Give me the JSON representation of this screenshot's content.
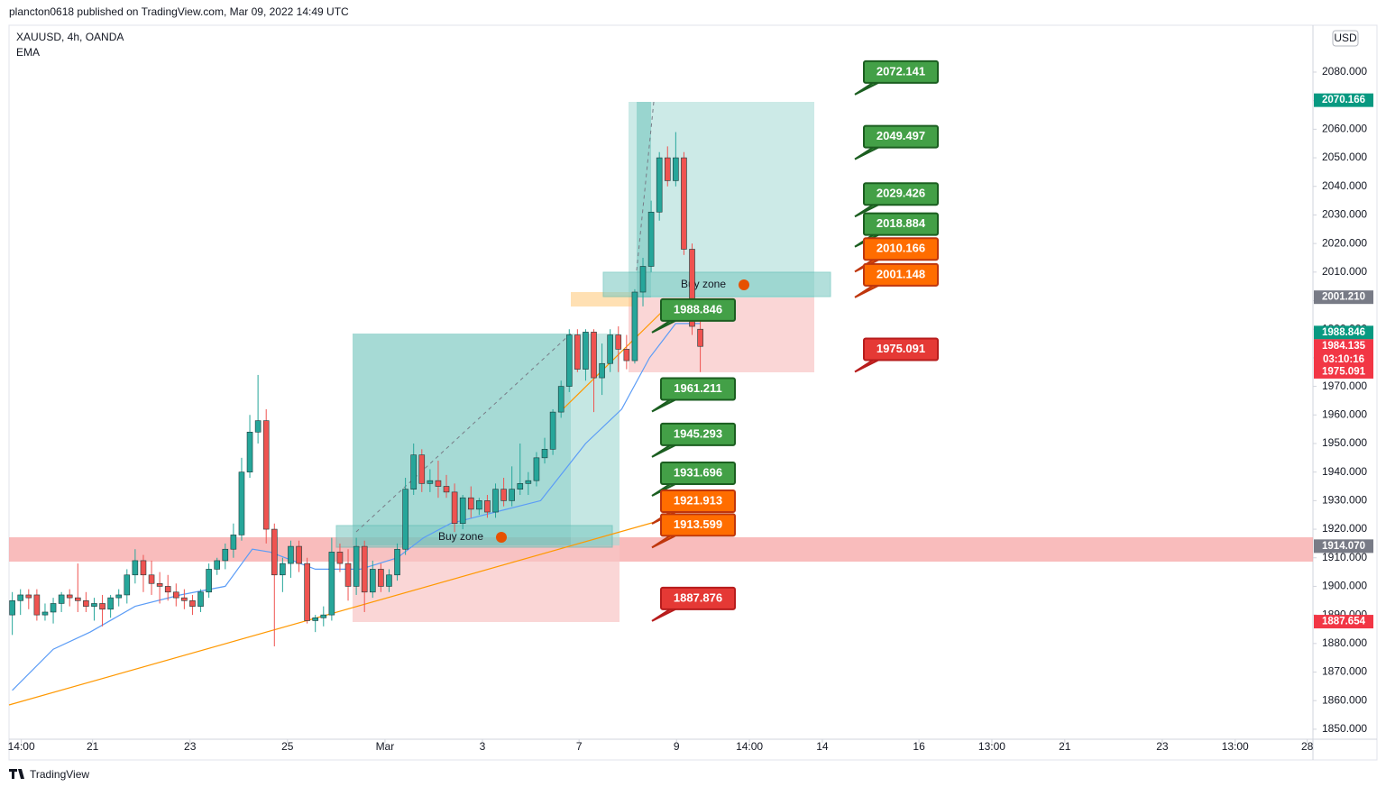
{
  "header": {
    "publisher": "plancton0618 published on TradingView.com, Mar 09, 2022 14:49 UTC",
    "footer": "TradingView"
  },
  "chart_data": {
    "type": "candlestick",
    "title": "XAUUSD, 4h, OANDA",
    "indicator": "EMA",
    "currency": "USD",
    "colors": {
      "up": "#26a69a",
      "down": "#ef5350",
      "ema": "#5b9cf6"
    },
    "grid": false,
    "ylim": [
      1846.5,
      2096.4
    ],
    "yticks": [
      {
        "value": 1850,
        "label": "1850.000"
      },
      {
        "value": 1860,
        "label": "1860.000"
      },
      {
        "value": 1870,
        "label": "1870.000"
      },
      {
        "value": 1880,
        "label": "1880.000"
      },
      {
        "value": 1890,
        "label": "1890.000"
      },
      {
        "value": 1900,
        "label": "1900.000"
      },
      {
        "value": 1910,
        "label": "1910.000"
      },
      {
        "value": 1920,
        "label": "1920.000"
      },
      {
        "value": 1930,
        "label": "1930.000"
      },
      {
        "value": 1940,
        "label": "1940.000"
      },
      {
        "value": 1950,
        "label": "1950.000"
      },
      {
        "value": 1960,
        "label": "1960.000"
      },
      {
        "value": 1970,
        "label": "1970.000"
      },
      {
        "value": 1980,
        "label": "1980.000"
      },
      {
        "value": 1990,
        "label": "1990.000"
      },
      {
        "value": 2000,
        "label": "2000.000"
      },
      {
        "value": 2010,
        "label": "2010.000"
      },
      {
        "value": 2020,
        "label": "2020.000"
      },
      {
        "value": 2030,
        "label": "2030.000"
      },
      {
        "value": 2040,
        "label": "2040.000"
      },
      {
        "value": 2050,
        "label": "2050.000"
      },
      {
        "value": 2060,
        "label": "2060.000"
      },
      {
        "value": 2070,
        "label": "2070.000"
      },
      {
        "value": 2080,
        "label": "2080.000"
      }
    ],
    "xlim": [
      -0.4,
      158.8
    ],
    "xticks": [
      {
        "value": 1.1,
        "label": "14:00"
      },
      {
        "value": 9.8,
        "label": "21"
      },
      {
        "value": 21.7,
        "label": "23"
      },
      {
        "value": 33.6,
        "label": "25"
      },
      {
        "value": 45.5,
        "label": "Mar"
      },
      {
        "value": 57.4,
        "label": "3"
      },
      {
        "value": 69.2,
        "label": "7"
      },
      {
        "value": 81.1,
        "label": "9"
      },
      {
        "value": 90.0,
        "label": "14:00"
      },
      {
        "value": 98.9,
        "label": "14"
      },
      {
        "value": 110.7,
        "label": "16"
      },
      {
        "value": 119.6,
        "label": "13:00"
      },
      {
        "value": 128.5,
        "label": "21"
      },
      {
        "value": 140.4,
        "label": "23"
      },
      {
        "value": 149.3,
        "label": "13:00"
      },
      {
        "value": 158.1,
        "label": "28"
      }
    ],
    "candles": [
      [
        1890,
        1898,
        1883,
        1895
      ],
      [
        1895,
        1899,
        1890,
        1897
      ],
      [
        1897,
        1899,
        1892,
        1896
      ],
      [
        1897,
        1899,
        1888,
        1890
      ],
      [
        1890,
        1894,
        1888,
        1891
      ],
      [
        1891,
        1896,
        1887,
        1894
      ],
      [
        1894,
        1898,
        1891,
        1897
      ],
      [
        1897,
        1899,
        1893,
        1896
      ],
      [
        1896,
        1908,
        1891,
        1895
      ],
      [
        1895,
        1898,
        1891,
        1893
      ],
      [
        1893,
        1896,
        1888,
        1894
      ],
      [
        1894,
        1897,
        1886,
        1892
      ],
      [
        1892,
        1897,
        1889,
        1896
      ],
      [
        1896,
        1899,
        1893,
        1897
      ],
      [
        1897,
        1906,
        1894,
        1904
      ],
      [
        1904,
        1913,
        1901,
        1909
      ],
      [
        1909,
        1911,
        1898,
        1904
      ],
      [
        1904,
        1909,
        1897,
        1901
      ],
      [
        1901,
        1905,
        1894,
        1900
      ],
      [
        1900,
        1904,
        1895,
        1898
      ],
      [
        1898,
        1901,
        1893,
        1896
      ],
      [
        1896,
        1899,
        1892,
        1895
      ],
      [
        1895,
        1897,
        1890,
        1893
      ],
      [
        1893,
        1899,
        1891,
        1898
      ],
      [
        1898,
        1908,
        1896,
        1906
      ],
      [
        1906,
        1910,
        1904,
        1909
      ],
      [
        1909,
        1915,
        1906,
        1913
      ],
      [
        1913,
        1922,
        1910,
        1918
      ],
      [
        1918,
        1945,
        1916,
        1940
      ],
      [
        1940,
        1960,
        1938,
        1954
      ],
      [
        1954,
        1974,
        1950,
        1958
      ],
      [
        1958,
        1962,
        1915,
        1920
      ],
      [
        1920,
        1922,
        1879,
        1904
      ],
      [
        1904,
        1910,
        1898,
        1908
      ],
      [
        1908,
        1916,
        1903,
        1914
      ],
      [
        1914,
        1916,
        1905,
        1908
      ],
      [
        1908,
        1910,
        1887,
        1888
      ],
      [
        1888,
        1890,
        1884,
        1889
      ],
      [
        1889,
        1893,
        1886,
        1890
      ],
      [
        1890,
        1917,
        1888,
        1912
      ],
      [
        1912,
        1915,
        1905,
        1908
      ],
      [
        1908,
        1913,
        1895,
        1900
      ],
      [
        1900,
        1917,
        1897,
        1914
      ],
      [
        1914,
        1916,
        1891,
        1898
      ],
      [
        1898,
        1909,
        1896,
        1906
      ],
      [
        1906,
        1908,
        1898,
        1900
      ],
      [
        1900,
        1906,
        1898,
        1904
      ],
      [
        1904,
        1915,
        1902,
        1913
      ],
      [
        1913,
        1938,
        1911,
        1934
      ],
      [
        1934,
        1950,
        1932,
        1946
      ],
      [
        1946,
        1948,
        1933,
        1936
      ],
      [
        1936,
        1941,
        1933,
        1937
      ],
      [
        1937,
        1944,
        1931,
        1935
      ],
      [
        1935,
        1939,
        1931,
        1933
      ],
      [
        1933,
        1936,
        1919,
        1922
      ],
      [
        1922,
        1932,
        1920,
        1931
      ],
      [
        1931,
        1935,
        1924,
        1927
      ],
      [
        1927,
        1931,
        1925,
        1930
      ],
      [
        1930,
        1932,
        1924,
        1926
      ],
      [
        1926,
        1936,
        1924,
        1934
      ],
      [
        1934,
        1938,
        1928,
        1930
      ],
      [
        1930,
        1942,
        1928,
        1934
      ],
      [
        1934,
        1950,
        1932,
        1936
      ],
      [
        1936,
        1940,
        1932,
        1937
      ],
      [
        1937,
        1947,
        1935,
        1945
      ],
      [
        1945,
        1952,
        1943,
        1948
      ],
      [
        1948,
        1962,
        1946,
        1961
      ],
      [
        1961,
        1972,
        1959,
        1970
      ],
      [
        1970,
        1990,
        1968,
        1988
      ],
      [
        1988,
        1990,
        1975,
        1976
      ],
      [
        1976,
        1990,
        1972,
        1989
      ],
      [
        1989,
        1990,
        1961,
        1973
      ],
      [
        1973,
        1985,
        1967,
        1978
      ],
      [
        1978,
        1990,
        1975,
        1988
      ],
      [
        1988,
        1991,
        1975,
        1983
      ],
      [
        1983,
        1988,
        1976,
        1979
      ],
      [
        1979,
        2004,
        1978,
        2003
      ],
      [
        2003,
        2015,
        1998,
        2012
      ],
      [
        2012,
        2035,
        2010,
        2031
      ],
      [
        2031,
        2052,
        2028,
        2050
      ],
      [
        2050,
        2054,
        2040,
        2042
      ],
      [
        2042,
        2059,
        2040,
        2050
      ],
      [
        2050,
        2052,
        2016,
        2018
      ],
      [
        2018,
        2020,
        1988,
        1991
      ],
      [
        1990,
        1994,
        1975,
        1984
      ]
    ],
    "ema": {
      "x": [
        0,
        5,
        9.5,
        15,
        20.5,
        26,
        29.3,
        31.5,
        37,
        42.5,
        47,
        50.2,
        53.5,
        59,
        64.5,
        66.7,
        70,
        74.4,
        77.8,
        81,
        84
      ],
      "values": [
        1863.6,
        1878,
        1884,
        1893,
        1897,
        1900,
        1913,
        1912,
        1906,
        1906,
        1910,
        1917,
        1922,
        1926,
        1930,
        1938,
        1950,
        1962,
        1980,
        1992,
        1992
      ]
    },
    "zones": [
      "Buy zone",
      "Buy zone"
    ],
    "annotations_right": [
      {
        "value": 2072.141,
        "color": "#43a047"
      },
      {
        "value": 2049.497,
        "color": "#43a047"
      },
      {
        "value": 2029.426,
        "color": "#43a047"
      },
      {
        "value": 2018.884,
        "color": "#43a047"
      },
      {
        "value": 2010.166,
        "color": "#ff6d00"
      },
      {
        "value": 2001.148,
        "color": "#ff6d00"
      },
      {
        "value": 1975.091,
        "color": "#e53935"
      }
    ],
    "annotations_left": [
      {
        "value": 1988.846,
        "color": "#43a047"
      },
      {
        "value": 1961.211,
        "color": "#43a047"
      },
      {
        "value": 1945.293,
        "color": "#43a047"
      },
      {
        "value": 1931.696,
        "color": "#43a047"
      },
      {
        "value": 1921.913,
        "color": "#ff6d00"
      },
      {
        "value": 1913.599,
        "color": "#ff6d00"
      },
      {
        "value": 1887.876,
        "color": "#e53935"
      }
    ],
    "price_tags": [
      {
        "value": 2070.166,
        "color": "#089981"
      },
      {
        "value": 2001.21,
        "label": "2001.210",
        "color": "#787b86"
      },
      {
        "value": 1988.846,
        "color": "#089981"
      },
      {
        "value": 1984.135,
        "color": "#f23645"
      },
      {
        "value": 1975.091,
        "color": "#f23645"
      },
      {
        "value": 1914.07,
        "label": "1914.070",
        "color": "#787b86"
      },
      {
        "value": 1887.654,
        "color": "#f23645"
      }
    ],
    "countdown": "03:10:16"
  }
}
